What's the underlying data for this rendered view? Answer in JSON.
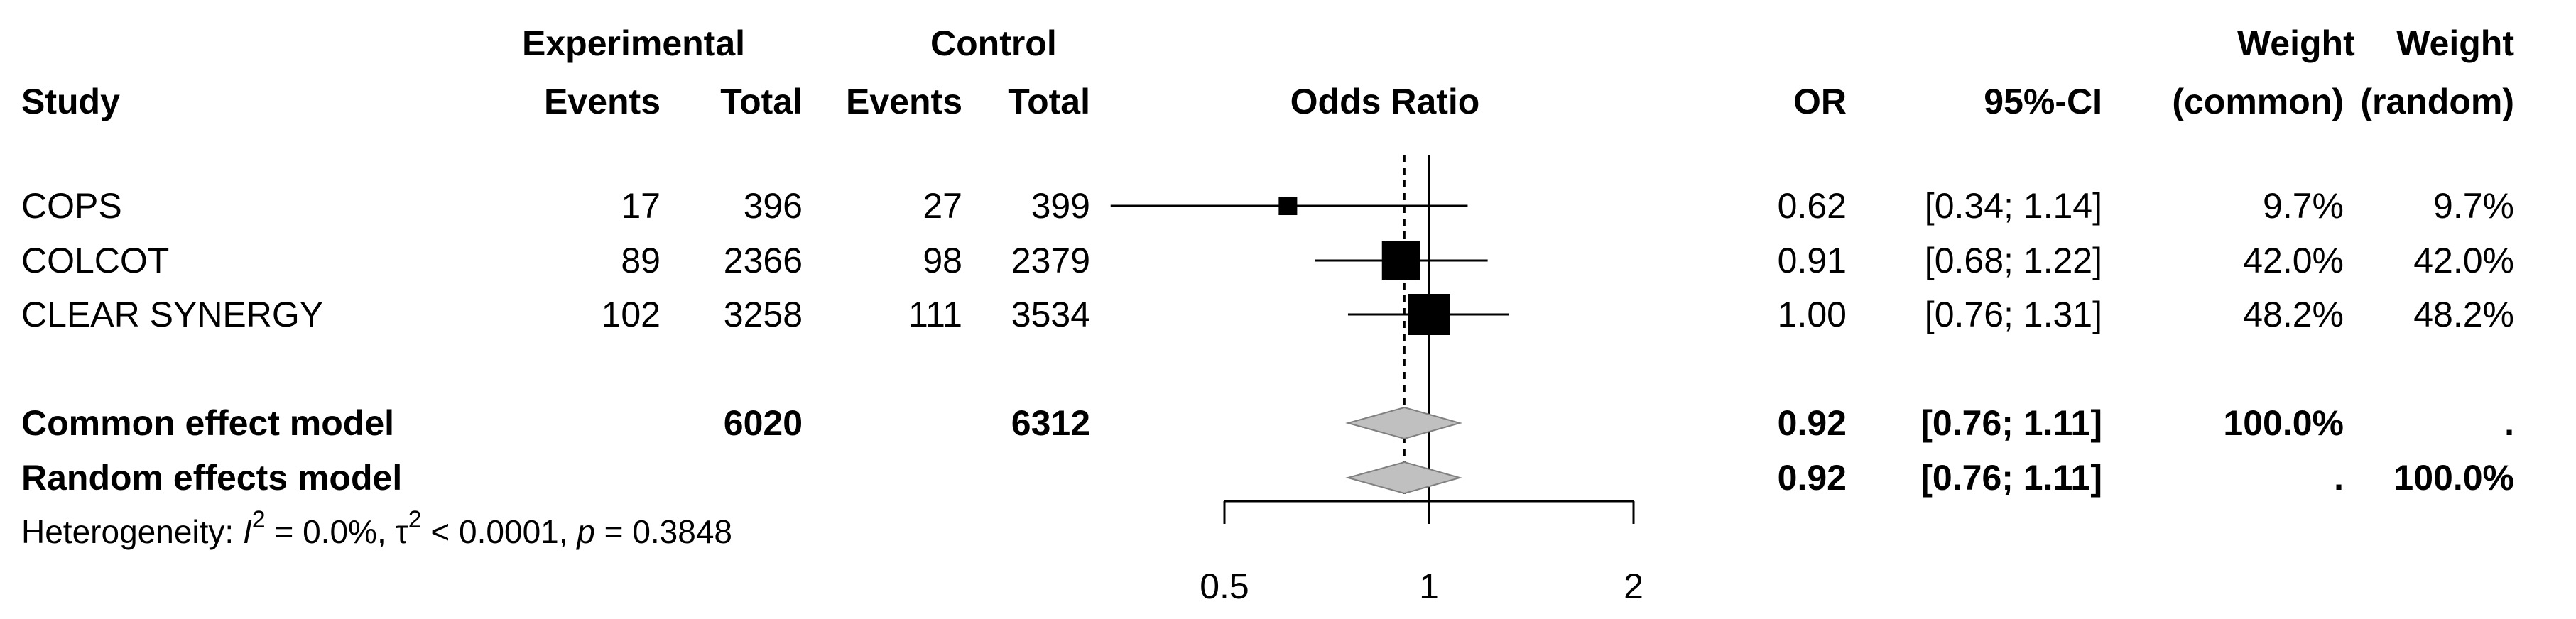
{
  "headers": {
    "study": "Study",
    "experimental": "Experimental",
    "control": "Control",
    "events": "Events",
    "total": "Total",
    "odds_ratio": "Odds Ratio",
    "or": "OR",
    "ci": "95%-CI",
    "weight": "Weight",
    "common": "(common)",
    "random": "(random)"
  },
  "studies": [
    {
      "name": "COPS",
      "e_events": "17",
      "e_total": "396",
      "c_events": "27",
      "c_total": "399",
      "or": "0.62",
      "ci": "[0.34; 1.14]",
      "w_common": "9.7%",
      "w_random": "9.7%"
    },
    {
      "name": "COLCOT",
      "e_events": "89",
      "e_total": "2366",
      "c_events": "98",
      "c_total": "2379",
      "or": "0.91",
      "ci": "[0.68; 1.22]",
      "w_common": "42.0%",
      "w_random": "42.0%"
    },
    {
      "name": "CLEAR SYNERGY",
      "e_events": "102",
      "e_total": "3258",
      "c_events": "111",
      "c_total": "3534",
      "or": "1.00",
      "ci": "[0.76; 1.31]",
      "w_common": "48.2%",
      "w_random": "48.2%"
    }
  ],
  "models": [
    {
      "name": "Common effect model",
      "e_total": "6020",
      "c_total": "6312",
      "or": "0.92",
      "ci": "[0.76; 1.11]",
      "w_common": "100.0%",
      "w_random": "."
    },
    {
      "name": "Random effects model",
      "e_total": "",
      "c_total": "",
      "or": "0.92",
      "ci": "[0.76; 1.11]",
      "w_common": ".",
      "w_random": "100.0%"
    }
  ],
  "heterogeneity": {
    "prefix": "Heterogeneity: ",
    "i_symbol": "I",
    "sup2": "2",
    "i2_value": " = 0.0%, ",
    "tau_symbol": "τ",
    "tau2_value": " < 0.0001, ",
    "p_symbol": "p",
    "p_value": " = 0.3848"
  },
  "chart_data": {
    "type": "forest",
    "x_scale": "log",
    "xlim": [
      0.5,
      2
    ],
    "x_ticks": [
      "0.5",
      "1",
      "2"
    ],
    "reference_line": 1,
    "pooled_line": 0.92,
    "studies": [
      {
        "label": "COPS",
        "or": 0.62,
        "lower": 0.34,
        "upper": 1.14,
        "weight": 9.7
      },
      {
        "label": "COLCOT",
        "or": 0.91,
        "lower": 0.68,
        "upper": 1.22,
        "weight": 42.0
      },
      {
        "label": "CLEAR SYNERGY",
        "or": 1.0,
        "lower": 0.76,
        "upper": 1.31,
        "weight": 48.2
      }
    ],
    "pooled": [
      {
        "label": "Common effect model",
        "or": 0.92,
        "lower": 0.76,
        "upper": 1.11
      },
      {
        "label": "Random effects model",
        "or": 0.92,
        "lower": 0.76,
        "upper": 1.11
      }
    ],
    "colors": {
      "box": "#000000",
      "diamond_fill": "#c0c0c0",
      "line": "#000000"
    }
  }
}
